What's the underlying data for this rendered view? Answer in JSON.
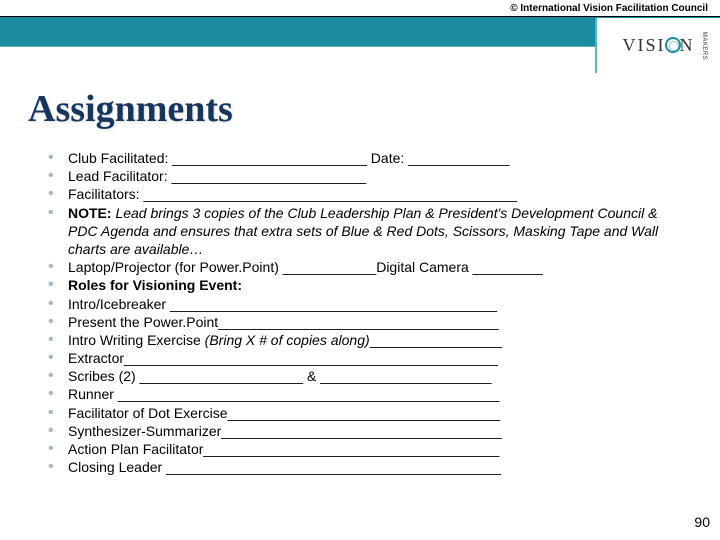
{
  "header": {
    "copyright": "© International Vision Facilitation Council",
    "logo_text_before": "VISI",
    "logo_text_after": "N",
    "logo_side": "MAKERS"
  },
  "title": "Assignments",
  "bullets": [
    "Club Facilitated: _________________________ Date: _____________",
    "Lead Facilitator: _________________________",
    "Facilitators: ________________________________________________",
    "NOTE:  Lead brings 3 copies of the Club Leadership Plan & President's Development Council & PDC Agenda and ensures that extra sets of Blue & Red Dots, Scissors, Masking Tape and Wall charts are available…",
    "Laptop/Projector (for Power.Point) ____________Digital Camera _________",
    "Roles for Visioning Event:",
    "Intro/Icebreaker __________________________________________",
    "Present the Power.Point____________________________________",
    "Intro Writing Exercise (Bring X # of copies along)_________________",
    "Extractor________________________________________________",
    "Scribes (2) _____________________ & ______________________",
    "Runner _________________________________________________",
    "Facilitator of Dot Exercise___________________________________",
    "Synthesizer-Summarizer____________________________________",
    "Action Plan Facilitator______________________________________",
    "Closing Leader ___________________________________________"
  ],
  "bullet_styles": {
    "note_index": 3,
    "bold_indices": [
      5
    ]
  },
  "page_number": "90",
  "colors": {
    "teal": "#1a8a9e",
    "dark_blue": "#17365d",
    "bullet_color": "#a0b8d0",
    "bg": "#ffffff"
  }
}
